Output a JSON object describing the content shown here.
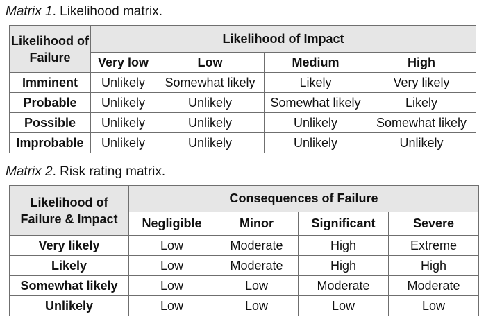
{
  "matrix1": {
    "caption_label": "Matrix 1",
    "caption_text": ". Likelihood matrix.",
    "corner_header": "Likelihood of Failure",
    "group_header": "Likelihood of Impact",
    "columns": [
      "Very low",
      "Low",
      "Medium",
      "High"
    ],
    "rows": [
      {
        "label": "Imminent",
        "cells": [
          "Unlikely",
          "Somewhat likely",
          "Likely",
          "Very likely"
        ]
      },
      {
        "label": "Probable",
        "cells": [
          "Unlikely",
          "Unlikely",
          "Somewhat likely",
          "Likely"
        ]
      },
      {
        "label": "Possible",
        "cells": [
          "Unlikely",
          "Unlikely",
          "Unlikely",
          "Somewhat likely"
        ]
      },
      {
        "label": "Improbable",
        "cells": [
          "Unlikely",
          "Unlikely",
          "Unlikely",
          "Unlikely"
        ]
      }
    ]
  },
  "matrix2": {
    "caption_label": "Matrix 2",
    "caption_text": ". Risk rating matrix.",
    "corner_header": "Likelihood of Failure & Impact",
    "group_header": "Consequences of Failure",
    "columns": [
      "Negligible",
      "Minor",
      "Significant",
      "Severe"
    ],
    "rows": [
      {
        "label": "Very likely",
        "cells": [
          "Low",
          "Moderate",
          "High",
          "Extreme"
        ]
      },
      {
        "label": "Likely",
        "cells": [
          "Low",
          "Moderate",
          "High",
          "High"
        ]
      },
      {
        "label": "Somewhat likely",
        "cells": [
          "Low",
          "Low",
          "Moderate",
          "Moderate"
        ]
      },
      {
        "label": "Unlikely",
        "cells": [
          "Low",
          "Low",
          "Low",
          "Low"
        ]
      }
    ]
  }
}
